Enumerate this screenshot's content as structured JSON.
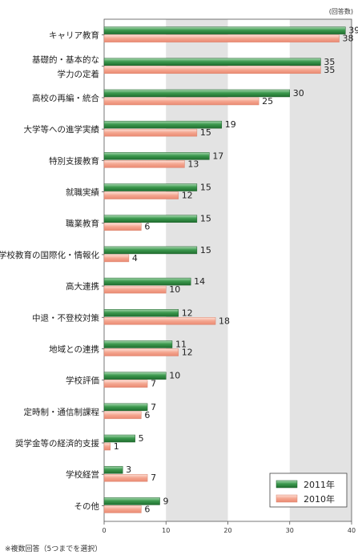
{
  "unit_label": "(回答数)",
  "footnote": "※複数回答（5つまでを選択）",
  "chart_data": {
    "type": "bar",
    "orientation": "horizontal",
    "categories": [
      "キャリア教育",
      "基礎的・基本的な\n学力の定着",
      "高校の再編・統合",
      "大学等への進学実績",
      "特別支援教育",
      "就職実績",
      "職業教育",
      "学校教育の国際化・情報化",
      "高大連携",
      "中退・不登校対策",
      "地域との連携",
      "学校評価",
      "定時制・通信制課程",
      "奨学金等の経済的支援",
      "学校経営",
      "その他"
    ],
    "series": [
      {
        "name": "2011年",
        "color": "#2e8b3e",
        "values": [
          39,
          35,
          30,
          19,
          17,
          15,
          15,
          15,
          14,
          12,
          11,
          10,
          7,
          5,
          3,
          9
        ]
      },
      {
        "name": "2010年",
        "color": "#f2a08a",
        "values": [
          38,
          35,
          25,
          15,
          13,
          12,
          6,
          4,
          10,
          18,
          12,
          7,
          6,
          1,
          7,
          6
        ]
      }
    ],
    "xlim": [
      0,
      40
    ],
    "xticks": [
      0,
      10,
      20,
      30,
      40
    ],
    "shaded_bands": [
      [
        10,
        20
      ],
      [
        30,
        40
      ]
    ],
    "legend_position": "bottom-right"
  }
}
